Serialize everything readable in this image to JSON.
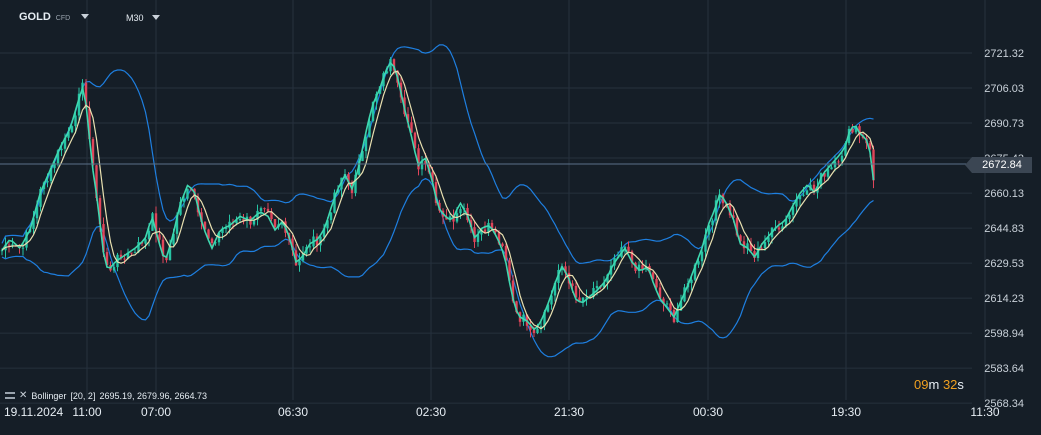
{
  "header": {
    "symbol": "GOLD",
    "symbol_sub": "CFD",
    "timeframe": "M30"
  },
  "indicator": {
    "label": "Bollinger",
    "params": "[20, 2]",
    "values": "2695.19,  2679.96,  2664.73"
  },
  "timer": {
    "minutes": "09",
    "minutes_unit": "m",
    "seconds": "32",
    "seconds_unit": "s"
  },
  "colors": {
    "background": "#151e27",
    "grid": "#26313d",
    "up_candle": "#26c4a4",
    "down_candle": "#e0455a",
    "band": "#1e7fe0",
    "middle_band": "#e8e0b0",
    "ma": "#3fd8b0",
    "price_line": "#5a7088",
    "timer_accent": "#f0a020"
  },
  "chart_data": {
    "type": "candlestick",
    "symbol": "GOLD",
    "timeframe": "M30",
    "y_ticks": [
      2721.32,
      2706.03,
      2690.73,
      2675.43,
      2660.13,
      2644.83,
      2629.53,
      2614.23,
      2598.94,
      2583.64,
      2568.34
    ],
    "y_tick_labels": [
      "2721.32",
      "2706.03",
      "2690.73",
      "2675.43",
      "2660.13",
      "2644.83",
      "2629.53",
      "2614.23",
      "2598.94",
      "2583.64",
      "2568.34"
    ],
    "ylim": [
      2563.9,
      2730.0
    ],
    "x_ticks": [
      "19.11.2024",
      "11:00",
      "07:00",
      "06:30",
      "02:30",
      "21:30",
      "00:30",
      "19:30",
      "11:30"
    ],
    "current_price": 2672.84,
    "current_price_label": "2672.84",
    "bollinger": {
      "period": 20,
      "deviation": 2,
      "upper": 2695.19,
      "middle": 2679.96,
      "lower": 2664.73
    },
    "grid": true,
    "close_path": [
      [
        0,
        2634
      ],
      [
        10,
        2640
      ],
      [
        20,
        2636
      ],
      [
        30,
        2644
      ],
      [
        40,
        2660
      ],
      [
        50,
        2670
      ],
      [
        60,
        2680
      ],
      [
        70,
        2688
      ],
      [
        78,
        2700
      ],
      [
        84,
        2708
      ],
      [
        88,
        2690
      ],
      [
        93,
        2670
      ],
      [
        98,
        2655
      ],
      [
        103,
        2635
      ],
      [
        108,
        2626
      ],
      [
        115,
        2630
      ],
      [
        125,
        2633
      ],
      [
        135,
        2636
      ],
      [
        145,
        2640
      ],
      [
        152,
        2650
      ],
      [
        158,
        2640
      ],
      [
        165,
        2630
      ],
      [
        172,
        2640
      ],
      [
        180,
        2655
      ],
      [
        188,
        2664
      ],
      [
        195,
        2660
      ],
      [
        200,
        2650
      ],
      [
        206,
        2642
      ],
      [
        212,
        2636
      ],
      [
        220,
        2644
      ],
      [
        230,
        2646
      ],
      [
        240,
        2650
      ],
      [
        250,
        2648
      ],
      [
        260,
        2652
      ],
      [
        268,
        2650
      ],
      [
        275,
        2644
      ],
      [
        283,
        2648
      ],
      [
        290,
        2640
      ],
      [
        296,
        2630
      ],
      [
        302,
        2632
      ],
      [
        310,
        2638
      ],
      [
        318,
        2640
      ],
      [
        325,
        2645
      ],
      [
        332,
        2655
      ],
      [
        338,
        2662
      ],
      [
        345,
        2668
      ],
      [
        352,
        2662
      ],
      [
        358,
        2670
      ],
      [
        365,
        2685
      ],
      [
        372,
        2698
      ],
      [
        380,
        2706
      ],
      [
        386,
        2714
      ],
      [
        392,
        2718
      ],
      [
        398,
        2710
      ],
      [
        405,
        2696
      ],
      [
        412,
        2684
      ],
      [
        418,
        2672
      ],
      [
        425,
        2676
      ],
      [
        432,
        2666
      ],
      [
        438,
        2654
      ],
      [
        445,
        2650
      ],
      [
        452,
        2648
      ],
      [
        460,
        2656
      ],
      [
        468,
        2650
      ],
      [
        475,
        2640
      ],
      [
        482,
        2645
      ],
      [
        490,
        2646
      ],
      [
        498,
        2640
      ],
      [
        505,
        2632
      ],
      [
        510,
        2620
      ],
      [
        515,
        2610
      ],
      [
        520,
        2606
      ],
      [
        528,
        2604
      ],
      [
        535,
        2600
      ],
      [
        542,
        2605
      ],
      [
        550,
        2614
      ],
      [
        556,
        2622
      ],
      [
        562,
        2628
      ],
      [
        568,
        2624
      ],
      [
        575,
        2614
      ],
      [
        582,
        2612
      ],
      [
        590,
        2615
      ],
      [
        598,
        2618
      ],
      [
        606,
        2622
      ],
      [
        612,
        2628
      ],
      [
        618,
        2632
      ],
      [
        625,
        2636
      ],
      [
        632,
        2630
      ],
      [
        640,
        2626
      ],
      [
        648,
        2628
      ],
      [
        654,
        2620
      ],
      [
        660,
        2614
      ],
      [
        667,
        2610
      ],
      [
        674,
        2606
      ],
      [
        680,
        2612
      ],
      [
        688,
        2620
      ],
      [
        695,
        2628
      ],
      [
        702,
        2636
      ],
      [
        708,
        2646
      ],
      [
        714,
        2652
      ],
      [
        720,
        2660
      ],
      [
        726,
        2656
      ],
      [
        734,
        2648
      ],
      [
        740,
        2638
      ],
      [
        748,
        2636
      ],
      [
        755,
        2632
      ],
      [
        762,
        2638
      ],
      [
        770,
        2642
      ],
      [
        778,
        2646
      ],
      [
        785,
        2648
      ],
      [
        792,
        2654
      ],
      [
        800,
        2660
      ],
      [
        808,
        2664
      ],
      [
        815,
        2660
      ],
      [
        822,
        2668
      ],
      [
        830,
        2672
      ],
      [
        838,
        2676
      ],
      [
        845,
        2680
      ],
      [
        850,
        2688
      ],
      [
        855,
        2690
      ],
      [
        860,
        2686
      ],
      [
        866,
        2684
      ],
      [
        870,
        2678
      ],
      [
        874,
        2664
      ]
    ]
  }
}
